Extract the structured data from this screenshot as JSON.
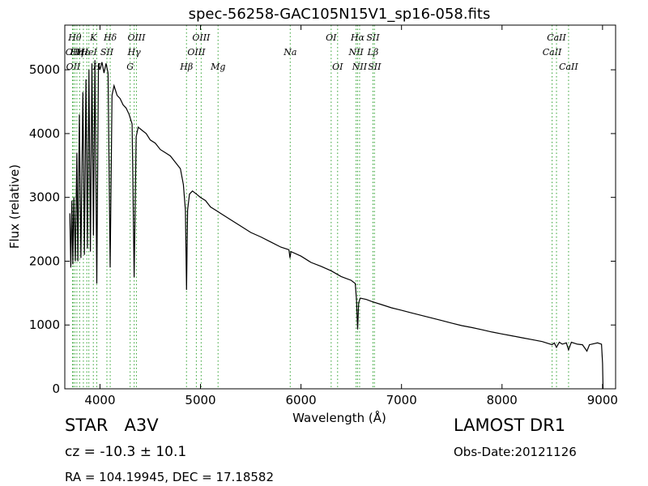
{
  "chart_data": {
    "type": "line",
    "title": "spec-56258-GAC105N15V1_sp16-058.fits",
    "xlabel": "Wavelength (Å)",
    "ylabel": "Flux (relative)",
    "xlim": [
      3650,
      9130
    ],
    "ylim": [
      0,
      5700
    ],
    "x_ticks": [
      4000,
      5000,
      6000,
      7000,
      8000,
      9000
    ],
    "y_ticks": [
      0,
      1000,
      2000,
      3000,
      4000,
      5000
    ],
    "grid": false,
    "series": [
      {
        "color": "#000000",
        "points": [
          [
            3700,
            2750
          ],
          [
            3710,
            1900
          ],
          [
            3720,
            2950
          ],
          [
            3730,
            1950
          ],
          [
            3740,
            3000
          ],
          [
            3755,
            2000
          ],
          [
            3770,
            3700
          ],
          [
            3780,
            2000
          ],
          [
            3795,
            4300
          ],
          [
            3810,
            2050
          ],
          [
            3830,
            4650
          ],
          [
            3845,
            2100
          ],
          [
            3860,
            4850
          ],
          [
            3875,
            2200
          ],
          [
            3890,
            5000
          ],
          [
            3905,
            2150
          ],
          [
            3920,
            5100
          ],
          [
            3935,
            2400
          ],
          [
            3950,
            5150
          ],
          [
            3968,
            1650
          ],
          [
            3985,
            5100
          ],
          [
            4000,
            5000
          ],
          [
            4020,
            5120
          ],
          [
            4040,
            4950
          ],
          [
            4060,
            5100
          ],
          [
            4080,
            4950
          ],
          [
            4101,
            1900
          ],
          [
            4120,
            4600
          ],
          [
            4140,
            4750
          ],
          [
            4170,
            4600
          ],
          [
            4200,
            4550
          ],
          [
            4230,
            4450
          ],
          [
            4260,
            4400
          ],
          [
            4290,
            4300
          ],
          [
            4320,
            4150
          ],
          [
            4340,
            1750
          ],
          [
            4360,
            3950
          ],
          [
            4380,
            4100
          ],
          [
            4420,
            4050
          ],
          [
            4460,
            4000
          ],
          [
            4500,
            3900
          ],
          [
            4550,
            3850
          ],
          [
            4600,
            3750
          ],
          [
            4650,
            3700
          ],
          [
            4700,
            3650
          ],
          [
            4750,
            3550
          ],
          [
            4800,
            3450
          ],
          [
            4830,
            3200
          ],
          [
            4850,
            2800
          ],
          [
            4861,
            1550
          ],
          [
            4872,
            2800
          ],
          [
            4890,
            3050
          ],
          [
            4920,
            3100
          ],
          [
            4960,
            3050
          ],
          [
            5000,
            3000
          ],
          [
            5050,
            2950
          ],
          [
            5100,
            2850
          ],
          [
            5150,
            2800
          ],
          [
            5200,
            2750
          ],
          [
            5300,
            2650
          ],
          [
            5400,
            2550
          ],
          [
            5500,
            2450
          ],
          [
            5600,
            2380
          ],
          [
            5700,
            2300
          ],
          [
            5800,
            2220
          ],
          [
            5880,
            2180
          ],
          [
            5890,
            2050
          ],
          [
            5900,
            2150
          ],
          [
            6000,
            2080
          ],
          [
            6100,
            1980
          ],
          [
            6200,
            1920
          ],
          [
            6300,
            1850
          ],
          [
            6400,
            1760
          ],
          [
            6500,
            1700
          ],
          [
            6540,
            1650
          ],
          [
            6552,
            1400
          ],
          [
            6563,
            930
          ],
          [
            6574,
            1350
          ],
          [
            6590,
            1420
          ],
          [
            6650,
            1400
          ],
          [
            6700,
            1370
          ],
          [
            6800,
            1320
          ],
          [
            6900,
            1270
          ],
          [
            7000,
            1230
          ],
          [
            7100,
            1190
          ],
          [
            7200,
            1150
          ],
          [
            7300,
            1110
          ],
          [
            7400,
            1070
          ],
          [
            7500,
            1030
          ],
          [
            7600,
            990
          ],
          [
            7700,
            960
          ],
          [
            7800,
            925
          ],
          [
            7900,
            890
          ],
          [
            8000,
            860
          ],
          [
            8100,
            830
          ],
          [
            8200,
            800
          ],
          [
            8300,
            770
          ],
          [
            8400,
            740
          ],
          [
            8498,
            690
          ],
          [
            8520,
            720
          ],
          [
            8542,
            650
          ],
          [
            8570,
            730
          ],
          [
            8600,
            700
          ],
          [
            8640,
            720
          ],
          [
            8662,
            610
          ],
          [
            8690,
            730
          ],
          [
            8750,
            700
          ],
          [
            8800,
            690
          ],
          [
            8845,
            590
          ],
          [
            8870,
            690
          ],
          [
            8950,
            720
          ],
          [
            8990,
            700
          ],
          [
            9000,
            400
          ],
          [
            9005,
            0
          ]
        ]
      }
    ],
    "line_markers": {
      "color": "#44aa44",
      "lines": [
        {
          "x": 3727,
          "labels": [
            "OII"
          ],
          "row": 1
        },
        {
          "x": 3734,
          "labels": [
            "OII"
          ],
          "row": 2
        },
        {
          "x": 3750,
          "labels": [
            "Hθ"
          ],
          "row": 0
        },
        {
          "x": 3770,
          "labels": [
            "Hη"
          ],
          "row": 1
        },
        {
          "x": 3798
        },
        {
          "x": 3835,
          "labels": [
            "Hε"
          ],
          "row": 1
        },
        {
          "x": 3869
        },
        {
          "x": 3889,
          "labels": [
            "HeI"
          ],
          "row": 1
        },
        {
          "x": 3934,
          "labels": [
            "K"
          ],
          "row": 0
        },
        {
          "x": 3968,
          "labels": [
            "H"
          ],
          "row": 2
        },
        {
          "x": 4069,
          "labels": [
            "SII"
          ],
          "row": 1
        },
        {
          "x": 4102,
          "labels": [
            "Hδ"
          ],
          "row": 0
        },
        {
          "x": 4300,
          "labels": [
            "G"
          ],
          "row": 2
        },
        {
          "x": 4340,
          "labels": [
            "Hγ"
          ],
          "row": 1
        },
        {
          "x": 4363,
          "labels": [
            "OIII"
          ],
          "row": 0
        },
        {
          "x": 4861,
          "labels": [
            "Hβ"
          ],
          "row": 2
        },
        {
          "x": 4959,
          "labels": [
            "OIII"
          ],
          "row": 1
        },
        {
          "x": 5007,
          "labels": [
            "OIII"
          ],
          "row": 0
        },
        {
          "x": 5175,
          "labels": [
            "Mg"
          ],
          "row": 2
        },
        {
          "x": 5893,
          "labels": [
            "Na"
          ],
          "row": 1
        },
        {
          "x": 6300,
          "labels": [
            "OI"
          ],
          "row": 0
        },
        {
          "x": 6364,
          "labels": [
            "OI"
          ],
          "row": 2
        },
        {
          "x": 6548,
          "labels": [
            "NII"
          ],
          "row": 1
        },
        {
          "x": 6563,
          "labels": [
            "Hα"
          ],
          "row": 0
        },
        {
          "x": 6583,
          "labels": [
            "NII"
          ],
          "row": 2
        },
        {
          "x": 6716,
          "labels": [
            "SII",
            "Lβ"
          ],
          "rows": [
            0,
            1
          ]
        },
        {
          "x": 6731,
          "labels": [
            "SII"
          ],
          "row": 2
        },
        {
          "x": 8498,
          "labels": [
            "CaII"
          ],
          "row": 1
        },
        {
          "x": 8542,
          "labels": [
            "CaII"
          ],
          "row": 0
        },
        {
          "x": 8662,
          "labels": [
            "CaII"
          ],
          "row": 2
        }
      ]
    }
  },
  "info": {
    "object_type": "STAR",
    "subclass": "A3V",
    "cz": "cz = -10.3 ± 10.1",
    "radec": "RA = 104.19945, DEC = 17.18582",
    "survey": "LAMOST DR1",
    "obs_date": "Obs-Date:20121126"
  }
}
